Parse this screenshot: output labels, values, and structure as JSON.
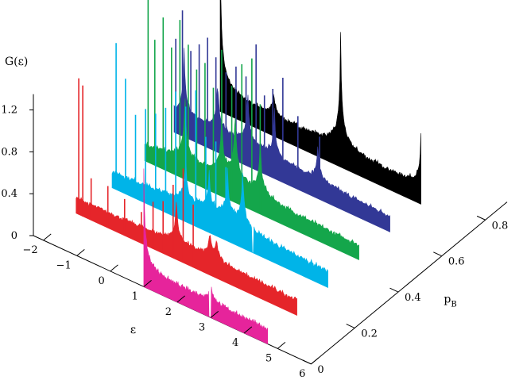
{
  "chart_data": {
    "type": "area",
    "title": "",
    "zlabel": "G(ε)",
    "xlabel": "ε",
    "ylabel": "p",
    "ylabel_sub": "B",
    "xlim": [
      -2.3,
      6
    ],
    "ylim": [
      0,
      0.9
    ],
    "zlim": [
      0,
      1.45
    ],
    "x_ticks": [
      "−2",
      "−1",
      "0",
      "1",
      "2",
      "3",
      "4",
      "5",
      "6"
    ],
    "y_ticks": [
      "0",
      "0.2",
      "0.4",
      "0.6",
      "0.8"
    ],
    "z_ticks": [
      "0",
      "0.4",
      "0.8",
      "1.2"
    ],
    "grid": false,
    "legend": "none",
    "series": [
      {
        "p_B": 0.0,
        "color": "#e6249b",
        "x_start": 1.0,
        "x_end": 4.7,
        "base": 0.13,
        "peaks": [
          [
            1.0,
            1.0
          ],
          [
            3.0,
            0.25
          ]
        ],
        "gaps": [
          [
            2.94,
            3.02
          ]
        ],
        "spike_x": [],
        "spike_h": []
      },
      {
        "p_B": 0.15,
        "color": "#e5252a",
        "x_start": -2.0,
        "x_end": 4.6,
        "base": 0.14,
        "peaks": [
          [
            1.0,
            0.45
          ],
          [
            2.0,
            0.25
          ],
          [
            2.2,
            0.2
          ]
        ],
        "gaps": [],
        "spike_x": [
          -1.92,
          -1.8,
          -1.55,
          -1.05,
          -0.55,
          -0.05,
          0.3,
          0.6,
          0.9,
          1.2,
          1.5
        ],
        "spike_h": [
          1.3,
          1.25,
          0.4,
          0.4,
          0.35,
          0.3,
          0.45,
          0.5,
          0.7,
          0.9,
          0.6
        ]
      },
      {
        "p_B": 0.3,
        "color": "#00b4e8",
        "x_start": -1.9,
        "x_end": 4.55,
        "base": 0.14,
        "peaks": [
          [
            0.3,
            0.45
          ],
          [
            1.0,
            0.4
          ],
          [
            1.55,
            0.5
          ],
          [
            2.0,
            0.6
          ]
        ],
        "gaps": [
          [
            2.28,
            2.34
          ]
        ],
        "spike_x": [
          -1.78,
          -1.5,
          -1.2,
          -0.9,
          -0.6,
          -0.3,
          0.0,
          0.3,
          0.6,
          0.9,
          1.2,
          1.5
        ],
        "spike_h": [
          1.4,
          1.1,
          0.8,
          0.9,
          0.9,
          1.0,
          1.2,
          1.1,
          1.3,
          0.9,
          0.9,
          0.7
        ]
      },
      {
        "p_B": 0.45,
        "color": "#14a64b",
        "x_start": -1.9,
        "x_end": 4.5,
        "base": 0.12,
        "peaks": [
          [
            -0.7,
            0.7
          ],
          [
            0.4,
            0.6
          ],
          [
            0.8,
            0.75
          ],
          [
            1.55,
            0.55
          ]
        ],
        "gaps": [],
        "spike_x": [
          -1.8,
          -1.6,
          -1.35,
          -1.1,
          -0.85,
          -0.6,
          -0.35,
          -0.1,
          0.15,
          0.4,
          0.7,
          1.0,
          1.3,
          1.55
        ],
        "spike_h": [
          1.75,
          1.2,
          1.45,
          1.2,
          1.5,
          1.3,
          1.1,
          1.2,
          1.0,
          1.4,
          1.1,
          1.35,
          1.45,
          1.05
        ]
      },
      {
        "p_B": 0.6,
        "color": "#323896",
        "x_start": -2.0,
        "x_end": 4.45,
        "base": 0.13,
        "peaks": [
          [
            -1.7,
            0.7
          ],
          [
            -0.7,
            0.55
          ],
          [
            0.2,
            0.6
          ],
          [
            1.0,
            0.5
          ],
          [
            2.3,
            0.4
          ]
        ],
        "gaps": [],
        "spike_x": [
          -1.95,
          -1.75,
          -1.5,
          -1.25,
          -1.0,
          -0.75,
          -0.45,
          -0.15,
          0.15,
          0.45,
          0.7,
          0.95,
          1.25,
          1.7,
          2.35
        ],
        "spike_h": [
          0.9,
          1.2,
          0.85,
          0.95,
          1.05,
          0.9,
          0.8,
          0.9,
          0.85,
          1.2,
          0.75,
          0.85,
          1.0,
          0.7,
          0.6
        ]
      },
      {
        "p_B": 0.75,
        "color": "#000000",
        "x_start": -1.6,
        "x_end": 4.4,
        "base": 0.14,
        "peaks": [
          [
            -1.6,
            1.5
          ],
          [
            0.0,
            0.25
          ],
          [
            2.0,
            1.1
          ],
          [
            4.4,
            0.5
          ]
        ],
        "gaps": [],
        "spike_x": [],
        "spike_h": []
      }
    ]
  }
}
